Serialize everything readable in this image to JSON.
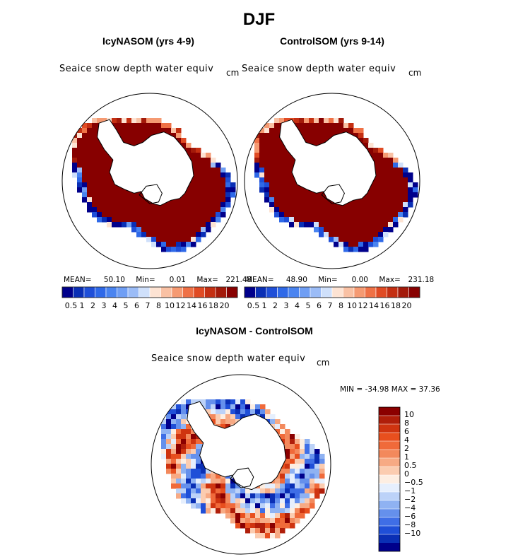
{
  "figure_title": "DJF",
  "chart_data": [
    {
      "type": "heatmap",
      "projection": "south-polar-stereographic",
      "title": "IcyNASOM (yrs 4-9)",
      "field": "Seaice snow depth water equiv",
      "units": "cm",
      "stats": {
        "mean_label": "MEAN=",
        "mean": "50.10",
        "min_label": "Min=",
        "min": "0.01",
        "max_label": "Max=",
        "max": "221.48"
      },
      "colorbar": {
        "orientation": "horizontal",
        "tick_labels": [
          "0.5",
          "1",
          "2",
          "3",
          "4",
          "5",
          "6",
          "7",
          "8",
          "10",
          "12",
          "14",
          "16",
          "18",
          "20"
        ],
        "colors": [
          "#00008b",
          "#0a2fb5",
          "#1f4fd8",
          "#2f69e8",
          "#4a84f0",
          "#6f9ef4",
          "#9bbcf7",
          "#cfe0fb",
          "#fde3d3",
          "#f9c1a4",
          "#f59a72",
          "#ef7146",
          "#e04b24",
          "#c42f12",
          "#a31a0a",
          "#870000"
        ]
      }
    },
    {
      "type": "heatmap",
      "projection": "south-polar-stereographic",
      "title": "ControlSOM (yrs 9-14)",
      "field": "Seaice snow depth water equiv",
      "units": "cm",
      "stats": {
        "mean_label": "MEAN=",
        "mean": "48.90",
        "min_label": "Min=",
        "min": "0.00",
        "max_label": "Max=",
        "max": "231.18"
      },
      "colorbar": {
        "orientation": "horizontal",
        "tick_labels": [
          "0.5",
          "1",
          "2",
          "3",
          "4",
          "5",
          "6",
          "7",
          "8",
          "10",
          "12",
          "14",
          "16",
          "18",
          "20"
        ],
        "colors": [
          "#00008b",
          "#0a2fb5",
          "#1f4fd8",
          "#2f69e8",
          "#4a84f0",
          "#6f9ef4",
          "#9bbcf7",
          "#cfe0fb",
          "#fde3d3",
          "#f9c1a4",
          "#f59a72",
          "#ef7146",
          "#e04b24",
          "#c42f12",
          "#a31a0a",
          "#870000"
        ]
      }
    },
    {
      "type": "heatmap",
      "projection": "south-polar-stereographic",
      "title": "IcyNASOM - ControlSOM",
      "field": "Seaice snow depth water equiv",
      "units": "cm",
      "stats": {
        "min_label": "MIN =",
        "min": "-34.98",
        "max_label": "MAX =",
        "max": "37.36"
      },
      "colorbar": {
        "orientation": "vertical",
        "tick_labels": [
          "10",
          "8",
          "6",
          "4",
          "2",
          "1",
          "0.5",
          "0",
          "−0.5",
          "−1",
          "−2",
          "−4",
          "−6",
          "−8",
          "−10"
        ],
        "colors": [
          "#8b0000",
          "#b01e0a",
          "#cf3410",
          "#e84f1e",
          "#f06a3a",
          "#f3895c",
          "#f7aa84",
          "#fbccb0",
          "#fdeee2",
          "#e6effd",
          "#bcd2f8",
          "#8fb2f2",
          "#6590ec",
          "#3f6ee6",
          "#1f4fd8",
          "#0a2fb5",
          "#00008b"
        ]
      }
    }
  ]
}
